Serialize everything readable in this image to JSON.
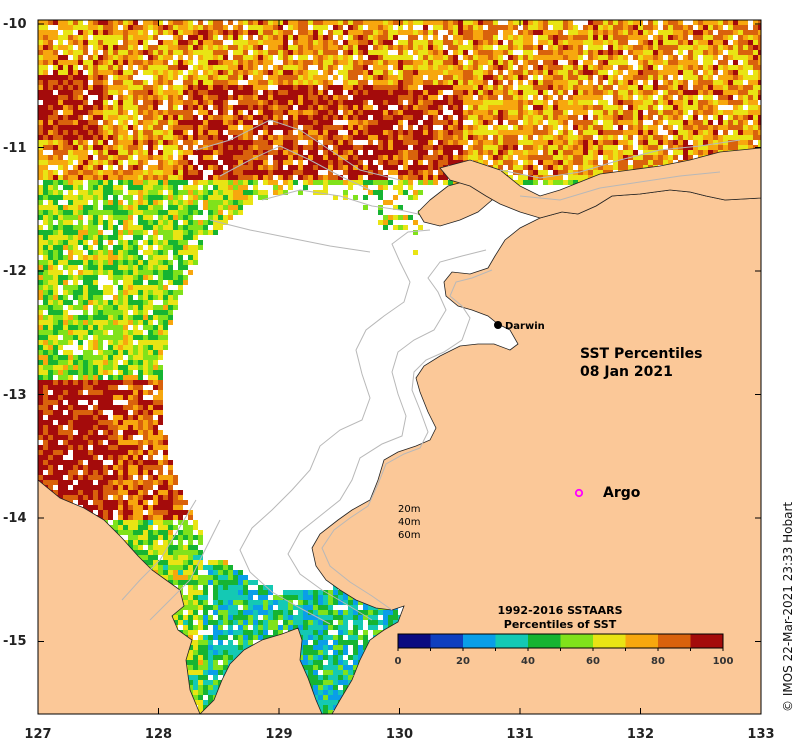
{
  "title_line1": "SST Percentiles",
  "title_line2": "08 Jan 2021",
  "credit": "© IMOS 22-Mar-2021 23:33 Hobart",
  "places": {
    "darwin": "Darwin",
    "argo": "Argo"
  },
  "depth_contours": [
    "20m",
    "40m",
    "60m"
  ],
  "legend": {
    "title_line1": "1992-2016 SSTAARS",
    "title_line2": "Percentiles of SST",
    "colors": [
      "#0a0a80",
      "#0f3fbf",
      "#0a9ee8",
      "#14c9b4",
      "#16b432",
      "#80e21b",
      "#e9e414",
      "#f7a70e",
      "#d9620c",
      "#a40b0b"
    ],
    "tick_labels": [
      "0",
      "20",
      "40",
      "60",
      "80",
      "100"
    ]
  },
  "axes": {
    "x_ticks": [
      "127",
      "128",
      "129",
      "130",
      "131",
      "132",
      "133"
    ],
    "y_ticks": [
      "-10",
      "-11",
      "-12",
      "-13",
      "-14",
      "-15"
    ]
  },
  "colors": {
    "land": "#fbc898",
    "sea_nodata": "#ffffff",
    "contour": "#b8b8b8",
    "argo": "#ff00ff"
  }
}
